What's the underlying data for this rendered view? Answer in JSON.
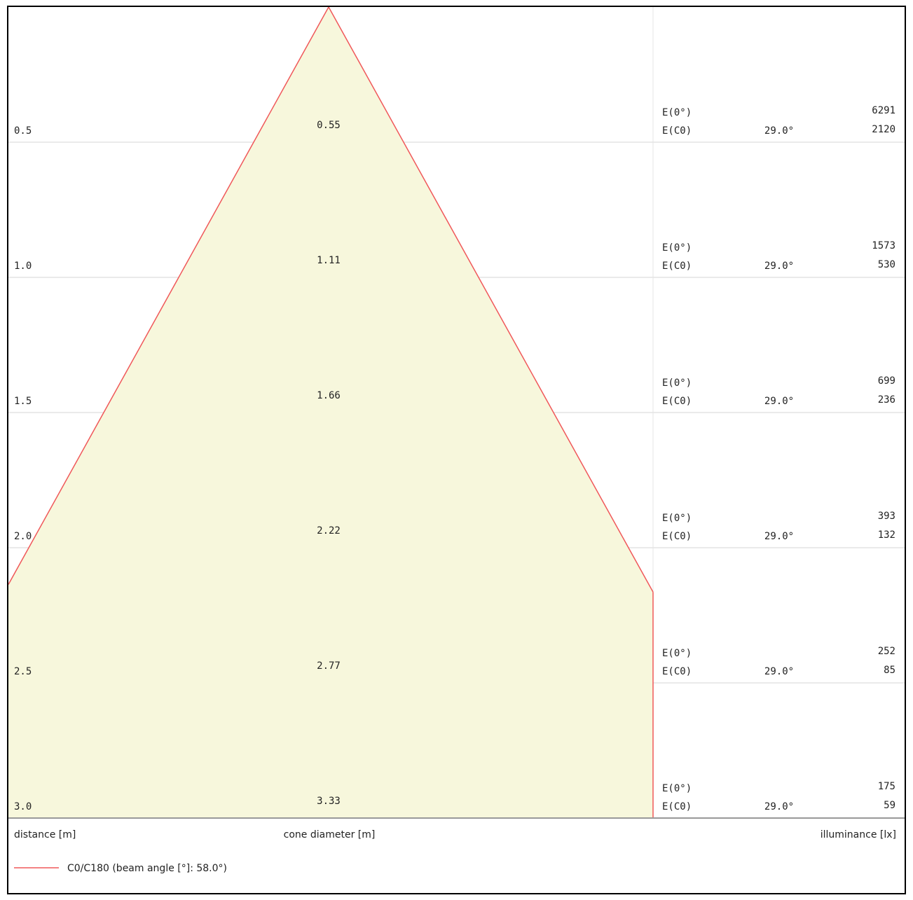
{
  "chart_data": {
    "type": "area",
    "xlabel": "distance [m]",
    "center_label": "cone diameter [m]",
    "right_label": "illuminance [lx]",
    "legend": {
      "label": "C0/C180 (beam angle [°]: 58.0°)",
      "placement": "bottom-left"
    },
    "beam_angle_deg": 58.0,
    "colors": {
      "cone_fill": "#f7f7dc",
      "cone_stroke": "#f0585a",
      "grid": "#e4e4e4",
      "axis": "#999999",
      "text": "#222222"
    },
    "rows": [
      {
        "distance": "0.5",
        "cone_diameter": "0.55",
        "e0_label": "E(0°)",
        "c0_label": "E(C0)",
        "angle": "29.0°",
        "e0": "6291",
        "c0": "2120"
      },
      {
        "distance": "1.0",
        "cone_diameter": "1.11",
        "e0_label": "E(0°)",
        "c0_label": "E(C0)",
        "angle": "29.0°",
        "e0": "1573",
        "c0": "530"
      },
      {
        "distance": "1.5",
        "cone_diameter": "1.66",
        "e0_label": "E(0°)",
        "c0_label": "E(C0)",
        "angle": "29.0°",
        "e0": "699",
        "c0": "236"
      },
      {
        "distance": "2.0",
        "cone_diameter": "2.22",
        "e0_label": "E(0°)",
        "c0_label": "E(C0)",
        "angle": "29.0°",
        "e0": "393",
        "c0": "132"
      },
      {
        "distance": "2.5",
        "cone_diameter": "2.77",
        "e0_label": "E(0°)",
        "c0_label": "E(C0)",
        "angle": "29.0°",
        "e0": "252",
        "c0": "85"
      },
      {
        "distance": "3.0",
        "cone_diameter": "3.33",
        "e0_label": "E(0°)",
        "c0_label": "E(C0)",
        "angle": "29.0°",
        "e0": "175",
        "c0": "59"
      }
    ]
  }
}
